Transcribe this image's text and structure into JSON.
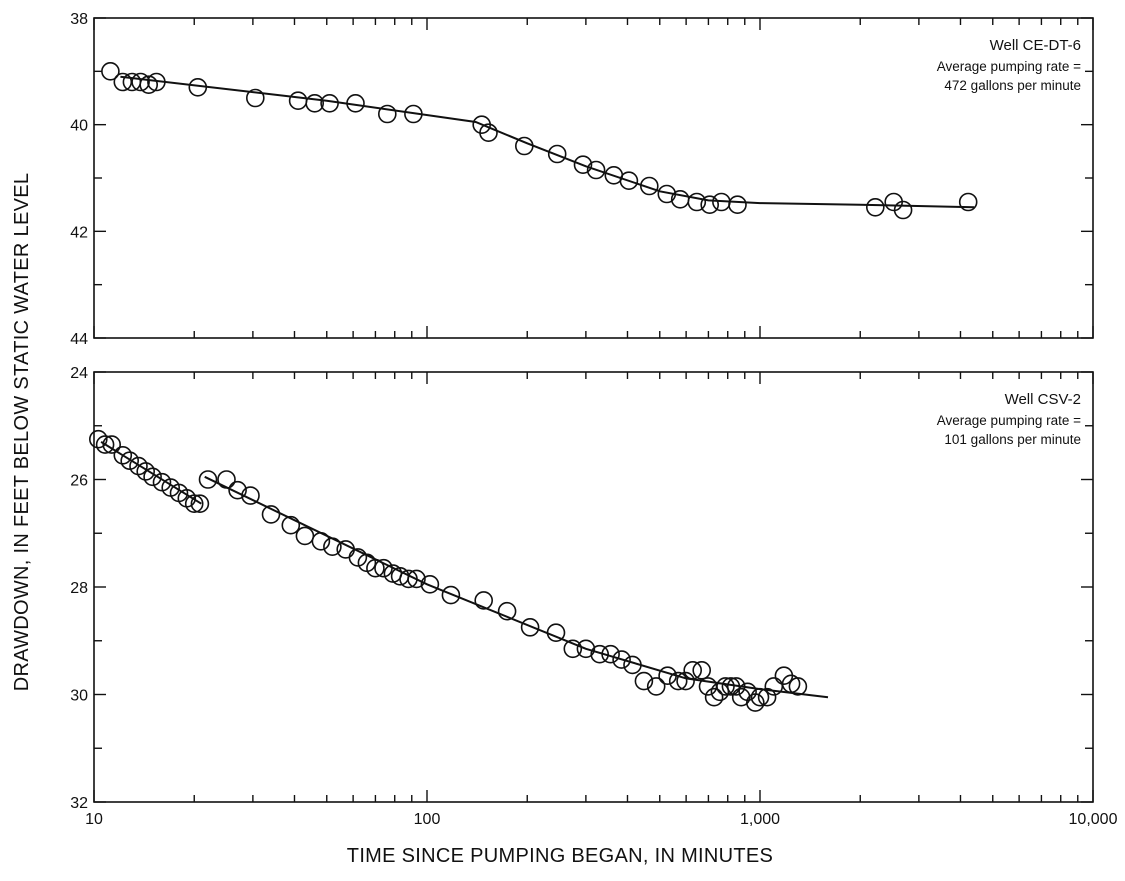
{
  "chart_data": [
    {
      "type": "scatter",
      "x_scale": "log",
      "y_inverted": true,
      "xlim": [
        10,
        10000
      ],
      "ylim": [
        38,
        44
      ],
      "x_ticks": [
        "10",
        "100",
        "1,000",
        "10,000"
      ],
      "y_ticks": [
        "38",
        "40",
        "42",
        "44"
      ],
      "annotation": [
        "Well CE-DT-6",
        "Average pumping rate =",
        "472 gallons per minute"
      ],
      "points": [
        {
          "x": 11.2,
          "y": 39.0
        },
        {
          "x": 12.2,
          "y": 39.2
        },
        {
          "x": 13.0,
          "y": 39.2
        },
        {
          "x": 13.8,
          "y": 39.2
        },
        {
          "x": 14.6,
          "y": 39.25
        },
        {
          "x": 15.4,
          "y": 39.2
        },
        {
          "x": 20.5,
          "y": 39.3
        },
        {
          "x": 30.5,
          "y": 39.5
        },
        {
          "x": 41,
          "y": 39.55
        },
        {
          "x": 46,
          "y": 39.6
        },
        {
          "x": 51,
          "y": 39.6
        },
        {
          "x": 61,
          "y": 39.6
        },
        {
          "x": 76,
          "y": 39.8
        },
        {
          "x": 91,
          "y": 39.8
        },
        {
          "x": 146,
          "y": 40.0
        },
        {
          "x": 153,
          "y": 40.15
        },
        {
          "x": 196,
          "y": 40.4
        },
        {
          "x": 246,
          "y": 40.55
        },
        {
          "x": 294,
          "y": 40.75
        },
        {
          "x": 322,
          "y": 40.85
        },
        {
          "x": 364,
          "y": 40.95
        },
        {
          "x": 404,
          "y": 41.05
        },
        {
          "x": 465,
          "y": 41.15
        },
        {
          "x": 525,
          "y": 41.3
        },
        {
          "x": 576,
          "y": 41.4
        },
        {
          "x": 646,
          "y": 41.45
        },
        {
          "x": 706,
          "y": 41.5
        },
        {
          "x": 766,
          "y": 41.45
        },
        {
          "x": 856,
          "y": 41.5
        },
        {
          "x": 2220,
          "y": 41.55
        },
        {
          "x": 2520,
          "y": 41.45
        },
        {
          "x": 2690,
          "y": 41.6
        },
        {
          "x": 4220,
          "y": 41.45
        }
      ],
      "fit_line": [
        {
          "x": 12,
          "y": 39.1
        },
        {
          "x": 50,
          "y": 39.55
        },
        {
          "x": 140,
          "y": 39.95
        },
        {
          "x": 200,
          "y": 40.35
        },
        {
          "x": 300,
          "y": 40.78
        },
        {
          "x": 500,
          "y": 41.25
        },
        {
          "x": 700,
          "y": 41.42
        },
        {
          "x": 1000,
          "y": 41.47
        },
        {
          "x": 2000,
          "y": 41.5
        },
        {
          "x": 4400,
          "y": 41.55
        }
      ]
    },
    {
      "type": "scatter",
      "x_scale": "log",
      "y_inverted": true,
      "xlim": [
        10,
        10000
      ],
      "ylim": [
        24,
        32
      ],
      "x_ticks": [
        "10",
        "100",
        "1,000",
        "10,000"
      ],
      "y_ticks": [
        "24",
        "26",
        "28",
        "30",
        "32"
      ],
      "annotation": [
        "Well CSV-2",
        "Average pumping rate =",
        "101 gallons per minute"
      ],
      "points": [
        {
          "x": 10.3,
          "y": 25.25
        },
        {
          "x": 10.8,
          "y": 25.35
        },
        {
          "x": 11.3,
          "y": 25.35
        },
        {
          "x": 12.2,
          "y": 25.55
        },
        {
          "x": 12.8,
          "y": 25.65
        },
        {
          "x": 13.6,
          "y": 25.75
        },
        {
          "x": 14.3,
          "y": 25.85
        },
        {
          "x": 15.0,
          "y": 25.95
        },
        {
          "x": 16.0,
          "y": 26.05
        },
        {
          "x": 17.0,
          "y": 26.15
        },
        {
          "x": 18.0,
          "y": 26.25
        },
        {
          "x": 19.0,
          "y": 26.35
        },
        {
          "x": 20.0,
          "y": 26.45
        },
        {
          "x": 20.8,
          "y": 26.45
        },
        {
          "x": 22.0,
          "y": 26.0
        },
        {
          "x": 25.0,
          "y": 26.0
        },
        {
          "x": 27.0,
          "y": 26.2
        },
        {
          "x": 29.5,
          "y": 26.3
        },
        {
          "x": 34.0,
          "y": 26.65
        },
        {
          "x": 39.0,
          "y": 26.85
        },
        {
          "x": 43.0,
          "y": 27.05
        },
        {
          "x": 48.0,
          "y": 27.15
        },
        {
          "x": 52.0,
          "y": 27.25
        },
        {
          "x": 57.0,
          "y": 27.3
        },
        {
          "x": 62.0,
          "y": 27.45
        },
        {
          "x": 66.0,
          "y": 27.55
        },
        {
          "x": 70.0,
          "y": 27.65
        },
        {
          "x": 74.0,
          "y": 27.65
        },
        {
          "x": 79.0,
          "y": 27.75
        },
        {
          "x": 83.0,
          "y": 27.8
        },
        {
          "x": 88.0,
          "y": 27.85
        },
        {
          "x": 93.0,
          "y": 27.85
        },
        {
          "x": 102,
          "y": 27.95
        },
        {
          "x": 118,
          "y": 28.15
        },
        {
          "x": 148,
          "y": 28.25
        },
        {
          "x": 174,
          "y": 28.45
        },
        {
          "x": 204,
          "y": 28.75
        },
        {
          "x": 244,
          "y": 28.85
        },
        {
          "x": 274,
          "y": 29.15
        },
        {
          "x": 300,
          "y": 29.15
        },
        {
          "x": 330,
          "y": 29.25
        },
        {
          "x": 356,
          "y": 29.25
        },
        {
          "x": 384,
          "y": 29.35
        },
        {
          "x": 414,
          "y": 29.45
        },
        {
          "x": 448,
          "y": 29.75
        },
        {
          "x": 488,
          "y": 29.85
        },
        {
          "x": 528,
          "y": 29.65
        },
        {
          "x": 568,
          "y": 29.75
        },
        {
          "x": 598,
          "y": 29.75
        },
        {
          "x": 628,
          "y": 29.55
        },
        {
          "x": 668,
          "y": 29.55
        },
        {
          "x": 698,
          "y": 29.85
        },
        {
          "x": 728,
          "y": 30.05
        },
        {
          "x": 758,
          "y": 29.95
        },
        {
          "x": 788,
          "y": 29.85
        },
        {
          "x": 818,
          "y": 29.85
        },
        {
          "x": 848,
          "y": 29.85
        },
        {
          "x": 878,
          "y": 30.05
        },
        {
          "x": 918,
          "y": 29.95
        },
        {
          "x": 968,
          "y": 30.15
        },
        {
          "x": 1000,
          "y": 30.05
        },
        {
          "x": 1050,
          "y": 30.05
        },
        {
          "x": 1100,
          "y": 29.85
        },
        {
          "x": 1180,
          "y": 29.65
        },
        {
          "x": 1240,
          "y": 29.8
        },
        {
          "x": 1300,
          "y": 29.85
        }
      ],
      "fit_lines": [
        [
          {
            "x": 10.5,
            "y": 25.3
          },
          {
            "x": 21,
            "y": 26.45
          }
        ],
        [
          {
            "x": 21.5,
            "y": 25.95
          },
          {
            "x": 100,
            "y": 27.95
          },
          {
            "x": 300,
            "y": 29.15
          },
          {
            "x": 600,
            "y": 29.7
          },
          {
            "x": 1000,
            "y": 29.9
          },
          {
            "x": 1600,
            "y": 30.05
          }
        ]
      ]
    }
  ],
  "labels": {
    "ylabel": "DRAWDOWN, IN FEET BELOW STATIC WATER LEVEL",
    "xlabel": "TIME SINCE PUMPING BEGAN, IN MINUTES"
  }
}
